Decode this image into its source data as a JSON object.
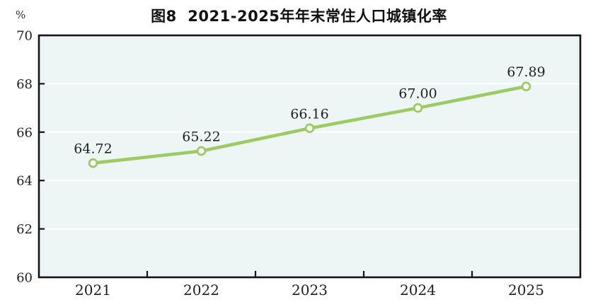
{
  "chart_data": {
    "type": "line",
    "title": "图8  2021-2025年年末常住人口城镇化率",
    "categories": [
      "2021",
      "2022",
      "2023",
      "2024",
      "2025"
    ],
    "values": [
      64.72,
      65.22,
      66.16,
      67.0,
      67.89
    ],
    "point_labels": [
      "64.72",
      "65.22",
      "66.16",
      "67.00",
      "67.89"
    ],
    "xlabel": "",
    "ylabel": "%",
    "ylim": [
      60,
      70
    ],
    "ytick_step": 2,
    "ytick_labels": [
      "60",
      "62",
      "64",
      "66",
      "68",
      "70"
    ],
    "grid": "horizontal",
    "legend": "none",
    "colors": {
      "line": "#9ccb62",
      "marker_fill": "#ffffff",
      "marker_stroke": "#9ccb62",
      "plot_background": "#edf6f4",
      "gridline": "#ffffff",
      "axis": "#141414",
      "text": "#1f1f1f"
    }
  }
}
